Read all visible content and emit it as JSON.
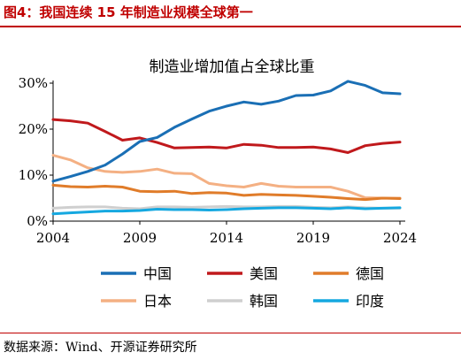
{
  "figure": {
    "title": "图4：我国连续 15 年制造业规模全球第一",
    "source": "数据来源：Wind、开源证券研究所"
  },
  "chart_data": {
    "type": "line",
    "title": "制造业增加值占全球比重",
    "xlabel": "",
    "ylabel": "",
    "xlim": [
      2004,
      2024
    ],
    "ylim": [
      0,
      30
    ],
    "xticks": [
      2004,
      2009,
      2014,
      2019,
      2024
    ],
    "yticks": [
      0,
      10,
      20,
      30
    ],
    "ytick_format": "%",
    "x": [
      2004,
      2005,
      2006,
      2007,
      2008,
      2009,
      2010,
      2011,
      2012,
      2013,
      2014,
      2015,
      2016,
      2017,
      2018,
      2019,
      2020,
      2021,
      2022,
      2023,
      2024
    ],
    "grid": false,
    "legend_position": "bottom",
    "series": [
      {
        "name": "中国",
        "color": "#1a6fb5",
        "values": [
          8.7,
          9.7,
          10.8,
          12.2,
          14.6,
          17.3,
          18.2,
          20.4,
          22.2,
          23.9,
          25.0,
          25.9,
          25.4,
          26.1,
          27.3,
          27.4,
          28.3,
          30.4,
          29.5,
          27.9,
          27.7
        ]
      },
      {
        "name": "美国",
        "color": "#c0191c",
        "values": [
          22.1,
          21.8,
          21.3,
          19.5,
          17.6,
          18.1,
          17.1,
          15.9,
          16.0,
          16.1,
          15.9,
          16.7,
          16.5,
          16.0,
          16.0,
          16.1,
          15.7,
          14.9,
          16.4,
          16.9,
          17.2
        ]
      },
      {
        "name": "德国",
        "color": "#e07c2a",
        "values": [
          7.8,
          7.5,
          7.4,
          7.6,
          7.4,
          6.5,
          6.4,
          6.5,
          6.0,
          6.2,
          6.1,
          5.6,
          5.8,
          5.7,
          5.6,
          5.4,
          5.2,
          4.9,
          4.7,
          5.0,
          4.9
        ]
      },
      {
        "name": "日本",
        "color": "#f4b083",
        "values": [
          14.3,
          13.3,
          11.6,
          10.8,
          10.6,
          10.8,
          11.3,
          10.4,
          10.3,
          8.2,
          7.7,
          7.4,
          8.2,
          7.6,
          7.4,
          7.4,
          7.4,
          6.5,
          5.1,
          5.0,
          5.0
        ]
      },
      {
        "name": "韩国",
        "color": "#cfcfcf",
        "values": [
          2.8,
          3.0,
          3.1,
          3.1,
          2.8,
          2.7,
          3.1,
          3.1,
          3.0,
          3.1,
          3.2,
          3.1,
          3.1,
          3.2,
          3.2,
          3.0,
          2.9,
          3.1,
          2.9,
          2.8,
          2.8
        ]
      },
      {
        "name": "印度",
        "color": "#15a8e0",
        "values": [
          1.6,
          1.8,
          2.0,
          2.2,
          2.2,
          2.3,
          2.6,
          2.5,
          2.5,
          2.4,
          2.5,
          2.7,
          2.8,
          2.9,
          2.9,
          2.8,
          2.7,
          2.9,
          2.7,
          2.8,
          2.9
        ]
      }
    ]
  }
}
